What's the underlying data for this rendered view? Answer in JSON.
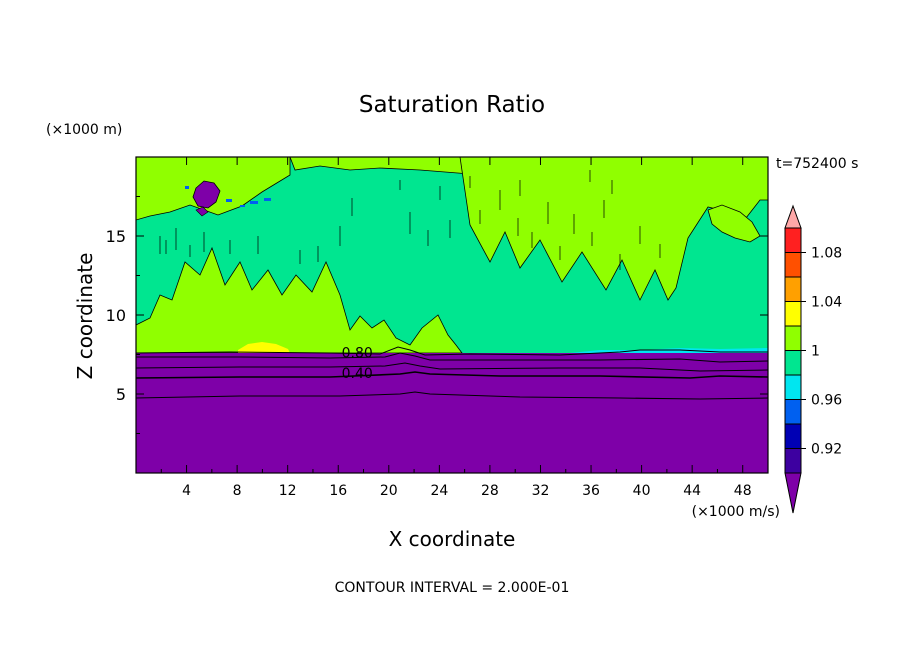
{
  "chart_data": {
    "type": "heatmap",
    "title": "Saturation Ratio",
    "xlabel": "X coordinate",
    "ylabel": "Z coordinate",
    "x_unit": "(×1000 m/s)",
    "y_unit": "(×1000 m)",
    "time_label": "t=752400 s",
    "footer": "CONTOUR INTERVAL = 2.000E-01",
    "xlim": [
      0,
      50
    ],
    "ylim": [
      0,
      20
    ],
    "x_ticks": [
      "4",
      "8",
      "12",
      "16",
      "20",
      "24",
      "28",
      "32",
      "36",
      "40",
      "44",
      "48"
    ],
    "y_ticks": [
      "5",
      "10",
      "15"
    ],
    "contour_labels": [
      {
        "text": "0.80",
        "x": 17.5,
        "y": 7.3
      },
      {
        "text": "0.40",
        "x": 17.5,
        "y": 6.0
      }
    ],
    "colorbar": {
      "labels": [
        "1.08",
        "1.04",
        "1",
        "0.96",
        "0.92"
      ],
      "colors": [
        "#7e00a8",
        "#3d00a0",
        "#0000b4",
        "#0060f0",
        "#00e6f0",
        "#00e690",
        "#90ff00",
        "#ffff00",
        "#ffa000",
        "#ff5000",
        "#ff2020",
        "#ffa8a8"
      ]
    }
  }
}
